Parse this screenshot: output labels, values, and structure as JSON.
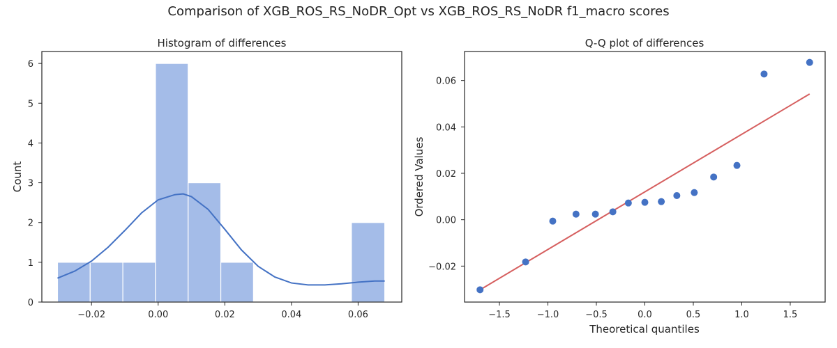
{
  "figure": {
    "suptitle": "Comparison of XGB_ROS_RS_NoDR_Opt vs XGB_ROS_RS_NoDR f1_macro scores"
  },
  "chart_data": [
    {
      "type": "bar",
      "title": "Histogram of differences",
      "xlabel": "",
      "ylabel": "Count",
      "xlim": [
        -0.0349,
        0.0731
      ],
      "ylim": [
        0,
        6.3
      ],
      "xticks": [
        -0.02,
        0.0,
        0.02,
        0.04,
        0.06
      ],
      "xtick_labels": [
        "−0.02",
        "0.00",
        "0.02",
        "0.04",
        "0.06"
      ],
      "yticks": [
        0,
        1,
        2,
        3,
        4,
        5,
        6
      ],
      "ytick_labels": [
        "0",
        "1",
        "2",
        "3",
        "4",
        "5",
        "6"
      ],
      "bins": [
        {
          "start": -0.0302,
          "end": -0.0204,
          "count": 1
        },
        {
          "start": -0.0204,
          "end": -0.0106,
          "count": 1
        },
        {
          "start": -0.0106,
          "end": -0.0008,
          "count": 1
        },
        {
          "start": -0.0008,
          "end": 0.009,
          "count": 6
        },
        {
          "start": 0.009,
          "end": 0.0188,
          "count": 3
        },
        {
          "start": 0.0188,
          "end": 0.0286,
          "count": 1
        },
        {
          "start": 0.0286,
          "end": 0.0384,
          "count": 0
        },
        {
          "start": 0.0384,
          "end": 0.0482,
          "count": 0
        },
        {
          "start": 0.0482,
          "end": 0.058,
          "count": 0
        },
        {
          "start": 0.058,
          "end": 0.068,
          "count": 2
        }
      ],
      "kde": {
        "x": [
          -0.0302,
          -0.025,
          -0.02,
          -0.015,
          -0.01,
          -0.005,
          0.0,
          0.005,
          0.0075,
          0.01,
          0.015,
          0.02,
          0.025,
          0.03,
          0.035,
          0.04,
          0.045,
          0.05,
          0.055,
          0.06,
          0.065,
          0.068
        ],
        "y": [
          0.6,
          0.78,
          1.03,
          1.38,
          1.8,
          2.24,
          2.57,
          2.7,
          2.72,
          2.65,
          2.33,
          1.83,
          1.31,
          0.9,
          0.63,
          0.48,
          0.43,
          0.43,
          0.46,
          0.5,
          0.53,
          0.53
        ]
      },
      "colors": {
        "bar": "#a4bce8",
        "kde": "#4472c4"
      },
      "grid": false
    },
    {
      "type": "scatter",
      "title": "Q-Q plot of differences",
      "xlabel": "Theoretical quantiles",
      "ylabel": "Ordered Values",
      "xlim": [
        -1.86,
        1.86
      ],
      "ylim": [
        -0.0355,
        0.0725
      ],
      "xticks": [
        -1.5,
        -1.0,
        -0.5,
        0.0,
        0.5,
        1.0,
        1.5
      ],
      "xtick_labels": [
        "−1.5",
        "−1.0",
        "−0.5",
        "0.0",
        "0.5",
        "1.0",
        "1.5"
      ],
      "yticks": [
        -0.02,
        0.0,
        0.02,
        0.04,
        0.06
      ],
      "ytick_labels": [
        "−0.02",
        "0.00",
        "0.02",
        "0.04",
        "0.06"
      ],
      "points": {
        "x": [
          -1.7,
          -1.23,
          -0.95,
          -0.71,
          -0.51,
          -0.33,
          -0.17,
          0.0,
          0.17,
          0.33,
          0.51,
          0.71,
          0.95,
          1.23,
          1.7
        ],
        "y": [
          -0.0302,
          -0.0182,
          -0.0006,
          0.0024,
          0.0024,
          0.0034,
          0.0072,
          0.0075,
          0.0078,
          0.0104,
          0.0117,
          0.0184,
          0.0234,
          0.0628,
          0.0678
        ]
      },
      "fit_line": {
        "x": [
          -1.7,
          1.7
        ],
        "y": [
          -0.0302,
          0.0542
        ]
      },
      "colors": {
        "points": "#4472c4",
        "line": "#d65f5f"
      },
      "grid": false
    }
  ]
}
